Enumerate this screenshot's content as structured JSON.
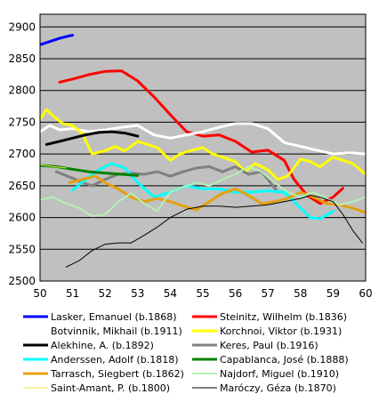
{
  "chart_data": {
    "type": "line",
    "xlabel": "",
    "ylabel": "",
    "xlim": [
      50,
      60
    ],
    "ylim": [
      2500,
      2920
    ],
    "xticks": [
      50,
      51,
      52,
      53,
      54,
      55,
      56,
      57,
      58,
      59,
      60
    ],
    "yticks": [
      2500,
      2550,
      2600,
      2650,
      2700,
      2750,
      2800,
      2850,
      2900
    ],
    "grid": true,
    "legend_position": "bottom",
    "background": "#c0c0c0",
    "series": [
      {
        "name": "Lasker, Emanuel (b.1868)",
        "color": "#0000ff",
        "width": 3,
        "x": [
          50.0,
          50.3,
          50.6,
          50.9,
          51.0
        ],
        "y": [
          2872,
          2877,
          2882,
          2886,
          2887
        ]
      },
      {
        "name": "Steinitz, Wilhelm (b.1836)",
        "color": "#ff0000",
        "width": 3,
        "x": [
          50.6,
          51.0,
          51.5,
          52.0,
          52.5,
          53.0,
          53.5,
          54.0,
          54.5,
          55.0,
          55.5,
          56.0,
          56.5,
          57.0,
          57.5,
          57.8,
          58.2,
          58.6,
          59.0,
          59.3
        ],
        "y": [
          2813,
          2818,
          2825,
          2830,
          2831,
          2815,
          2790,
          2762,
          2735,
          2728,
          2730,
          2720,
          2703,
          2706,
          2690,
          2660,
          2635,
          2622,
          2632,
          2646
        ]
      },
      {
        "name": "Botvinnik, Mikhail (b.1911)",
        "color": "#ffffff",
        "width": 3,
        "x": [
          50.0,
          50.3,
          50.6,
          51.0,
          51.5,
          52.0,
          52.5,
          53.0,
          53.5,
          54.0,
          54.5,
          55.0,
          55.5,
          56.0,
          56.5,
          57.0,
          57.5,
          58.0,
          58.5,
          59.0,
          59.5,
          60.0
        ],
        "y": [
          2735,
          2745,
          2738,
          2740,
          2735,
          2738,
          2742,
          2745,
          2730,
          2725,
          2730,
          2735,
          2742,
          2748,
          2748,
          2740,
          2718,
          2712,
          2706,
          2700,
          2702,
          2700
        ]
      },
      {
        "name": "Korchnoi, Viktor (b.1931)",
        "color": "#ffff00",
        "width": 3,
        "x": [
          50.0,
          50.2,
          50.4,
          50.7,
          51.0,
          51.3,
          51.6,
          52.0,
          52.3,
          52.6,
          53.0,
          53.3,
          53.6,
          54.0,
          54.3,
          54.6,
          55.0,
          55.3,
          55.6,
          56.0,
          56.3,
          56.6,
          57.0,
          57.3,
          57.6,
          58.0,
          58.3,
          58.6,
          59.0,
          59.3,
          59.6,
          60.0
        ],
        "y": [
          2755,
          2770,
          2760,
          2748,
          2745,
          2732,
          2700,
          2705,
          2712,
          2705,
          2720,
          2715,
          2710,
          2690,
          2700,
          2705,
          2710,
          2700,
          2695,
          2688,
          2672,
          2685,
          2675,
          2660,
          2665,
          2692,
          2688,
          2680,
          2695,
          2690,
          2685,
          2668
        ]
      },
      {
        "name": "Alekhine, A. (b.1892)",
        "color": "#000000",
        "width": 3,
        "x": [
          50.2,
          50.6,
          51.0,
          51.4,
          51.8,
          52.2,
          52.6,
          53.0
        ],
        "y": [
          2715,
          2720,
          2725,
          2730,
          2734,
          2735,
          2733,
          2728
        ]
      },
      {
        "name": "Keres, Paul (b.1916)",
        "color": "#808080",
        "width": 3,
        "x": [
          50.5,
          51.0,
          51.3,
          51.6,
          52.0,
          52.4,
          52.8,
          53.2,
          53.6,
          54.0,
          54.4,
          54.8,
          55.2,
          55.6,
          56.0,
          56.4,
          56.8,
          57.0,
          57.3
        ],
        "y": [
          2672,
          2662,
          2655,
          2650,
          2660,
          2668,
          2670,
          2668,
          2672,
          2665,
          2672,
          2678,
          2680,
          2672,
          2680,
          2668,
          2672,
          2660,
          2640
        ]
      },
      {
        "name": "Anderssen, Adolf (b.1818)",
        "color": "#00ffff",
        "width": 3,
        "x": [
          51.0,
          51.4,
          51.8,
          52.2,
          52.6,
          53.0,
          53.5,
          54.0,
          54.5,
          55.0,
          55.5,
          56.0,
          56.5,
          57.0,
          57.5,
          58.0,
          58.3,
          58.6,
          59.0
        ],
        "y": [
          2643,
          2660,
          2675,
          2685,
          2678,
          2655,
          2632,
          2640,
          2650,
          2645,
          2645,
          2640,
          2640,
          2642,
          2640,
          2615,
          2600,
          2598,
          2610
        ]
      },
      {
        "name": "Capablanca, José (b.1888)",
        "color": "#008000",
        "width": 3,
        "x": [
          50.0,
          50.5,
          51.0,
          51.5,
          52.0,
          52.5,
          53.0
        ],
        "y": [
          2682,
          2680,
          2676,
          2672,
          2670,
          2668,
          2666
        ]
      },
      {
        "name": "Tarrasch, Siegbert (b.1862)",
        "color": "#e3a010",
        "width": 3,
        "x": [
          50.9,
          51.3,
          51.7,
          52.0,
          52.4,
          52.8,
          53.2,
          53.6,
          54.0,
          54.4,
          54.8,
          55.2,
          55.6,
          56.0,
          56.4,
          56.8,
          57.2,
          57.6,
          58.0,
          58.4,
          58.8,
          59.2,
          59.6,
          60.0
        ],
        "y": [
          2655,
          2660,
          2665,
          2655,
          2645,
          2632,
          2625,
          2630,
          2625,
          2618,
          2612,
          2625,
          2638,
          2645,
          2635,
          2622,
          2625,
          2630,
          2640,
          2632,
          2622,
          2620,
          2615,
          2608
        ]
      },
      {
        "name": "Najdorf, Miguel (b.1910)",
        "color": "#b4f0b4",
        "width": 2,
        "x": [
          50.0,
          50.4,
          50.8,
          51.2,
          51.6,
          52.0,
          52.4,
          52.8,
          53.2,
          53.6,
          54.0,
          54.4,
          54.8,
          55.2,
          55.6,
          56.0,
          56.4,
          56.8,
          57.2,
          57.6,
          58.0,
          58.4,
          58.8,
          59.2,
          59.6,
          60.0
        ],
        "y": [
          2628,
          2632,
          2622,
          2615,
          2602,
          2605,
          2625,
          2638,
          2622,
          2610,
          2640,
          2648,
          2655,
          2650,
          2660,
          2668,
          2680,
          2672,
          2655,
          2640,
          2632,
          2640,
          2630,
          2620,
          2625,
          2632
        ]
      },
      {
        "name": "Saint-Amant, P. (b.1800)",
        "color": "#e8e840",
        "width": 1,
        "x": [
          50.0,
          50.4,
          50.8
        ],
        "y": [
          2683,
          2680,
          2678
        ]
      },
      {
        "name": "Maróczy, Géza (b.1870)",
        "color": "#000000",
        "width": 1,
        "x": [
          50.8,
          51.2,
          51.6,
          52.0,
          52.4,
          52.8,
          53.2,
          53.6,
          54.0,
          54.5,
          55.0,
          55.5,
          56.0,
          56.5,
          57.0,
          57.5,
          58.0,
          58.3,
          58.6,
          59.0,
          59.3,
          59.6,
          59.9
        ],
        "y": [
          2522,
          2532,
          2548,
          2558,
          2560,
          2560,
          2572,
          2585,
          2600,
          2613,
          2618,
          2618,
          2616,
          2618,
          2620,
          2625,
          2630,
          2635,
          2632,
          2625,
          2605,
          2580,
          2560
        ]
      }
    ]
  }
}
